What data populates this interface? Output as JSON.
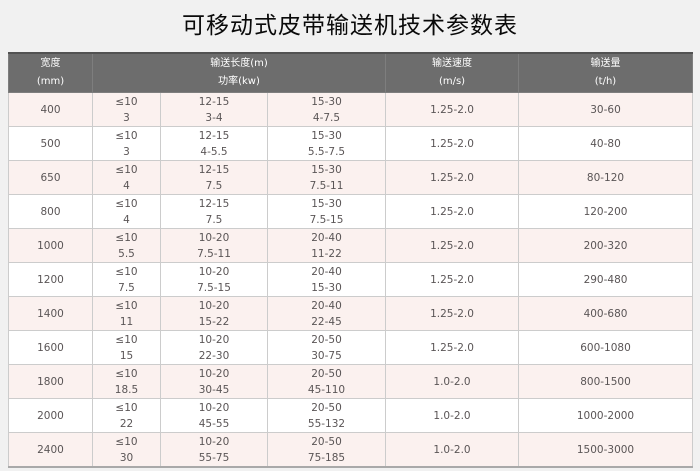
{
  "page": {
    "title": "可移动式皮带输送机技术参数表",
    "background_color": "#f1f1f1"
  },
  "colors": {
    "header_bg": "#6d6d6d",
    "header_text": "#ffffff",
    "row_alt_bg": "#fbf1ef",
    "row_bg": "#ffffff",
    "cell_text": "#5a5556",
    "border": "#cccccc",
    "table_bottom_border": "#a9a9a9"
  },
  "table": {
    "header": {
      "width": {
        "line1": "宽度",
        "line2": "(mm)"
      },
      "length_power": {
        "line1": "输送长度(m)",
        "line2": "功率(kw)"
      },
      "speed": {
        "line1": "输送速度",
        "line2": "(m/s)"
      },
      "capacity": {
        "line1": "输送量",
        "line2": "(t/h)"
      }
    }
  },
  "chart_data": {
    "type": "table",
    "title": "可移动式皮带输送机技术参数表",
    "columns": [
      "宽度 (mm)",
      "输送长度(m) / 功率(kw) — 段1",
      "输送长度(m) / 功率(kw) — 段2",
      "输送长度(m) / 功率(kw) — 段3",
      "输送速度 (m/s)",
      "输送量 (t/h)"
    ],
    "rows": [
      {
        "width_mm": "400",
        "length_power": [
          {
            "length": "≤10",
            "power": "3"
          },
          {
            "length": "12-15",
            "power": "3-4"
          },
          {
            "length": "15-30",
            "power": "4-7.5"
          }
        ],
        "speed": "1.25-2.0",
        "capacity": "30-60"
      },
      {
        "width_mm": "500",
        "length_power": [
          {
            "length": "≤10",
            "power": "3"
          },
          {
            "length": "12-15",
            "power": "4-5.5"
          },
          {
            "length": "15-30",
            "power": "5.5-7.5"
          }
        ],
        "speed": "1.25-2.0",
        "capacity": "40-80"
      },
      {
        "width_mm": "650",
        "length_power": [
          {
            "length": "≤10",
            "power": "4"
          },
          {
            "length": "12-15",
            "power": "7.5"
          },
          {
            "length": "15-30",
            "power": "7.5-11"
          }
        ],
        "speed": "1.25-2.0",
        "capacity": "80-120"
      },
      {
        "width_mm": "800",
        "length_power": [
          {
            "length": "≤10",
            "power": "4"
          },
          {
            "length": "12-15",
            "power": "7.5"
          },
          {
            "length": "15-30",
            "power": "7.5-15"
          }
        ],
        "speed": "1.25-2.0",
        "capacity": "120-200"
      },
      {
        "width_mm": "1000",
        "length_power": [
          {
            "length": "≤10",
            "power": "5.5"
          },
          {
            "length": "10-20",
            "power": "7.5-11"
          },
          {
            "length": "20-40",
            "power": "11-22"
          }
        ],
        "speed": "1.25-2.0",
        "capacity": "200-320"
      },
      {
        "width_mm": "1200",
        "length_power": [
          {
            "length": "≤10",
            "power": "7.5"
          },
          {
            "length": "10-20",
            "power": "7.5-15"
          },
          {
            "length": "20-40",
            "power": "15-30"
          }
        ],
        "speed": "1.25-2.0",
        "capacity": "290-480"
      },
      {
        "width_mm": "1400",
        "length_power": [
          {
            "length": "≤10",
            "power": "11"
          },
          {
            "length": "10-20",
            "power": "15-22"
          },
          {
            "length": "20-40",
            "power": "22-45"
          }
        ],
        "speed": "1.25-2.0",
        "capacity": "400-680"
      },
      {
        "width_mm": "1600",
        "length_power": [
          {
            "length": "≤10",
            "power": "15"
          },
          {
            "length": "10-20",
            "power": "22-30"
          },
          {
            "length": "20-50",
            "power": "30-75"
          }
        ],
        "speed": "1.25-2.0",
        "capacity": "600-1080"
      },
      {
        "width_mm": "1800",
        "length_power": [
          {
            "length": "≤10",
            "power": "18.5"
          },
          {
            "length": "10-20",
            "power": "30-45"
          },
          {
            "length": "20-50",
            "power": "45-110"
          }
        ],
        "speed": "1.0-2.0",
        "capacity": "800-1500"
      },
      {
        "width_mm": "2000",
        "length_power": [
          {
            "length": "≤10",
            "power": "22"
          },
          {
            "length": "10-20",
            "power": "45-55"
          },
          {
            "length": "20-50",
            "power": "55-132"
          }
        ],
        "speed": "1.0-2.0",
        "capacity": "1000-2000"
      },
      {
        "width_mm": "2400",
        "length_power": [
          {
            "length": "≤10",
            "power": "30"
          },
          {
            "length": "10-20",
            "power": "55-75"
          },
          {
            "length": "20-50",
            "power": "75-185"
          }
        ],
        "speed": "1.0-2.0",
        "capacity": "1500-3000"
      }
    ]
  }
}
